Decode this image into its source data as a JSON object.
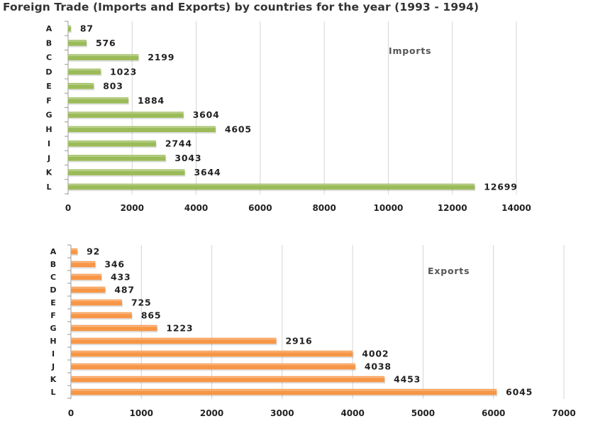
{
  "title": "Foreign Trade (Imports and Exports) by countries for the year (1993 - 1994)",
  "chart_data": [
    {
      "type": "bar",
      "orientation": "horizontal",
      "categories": [
        "A",
        "B",
        "C",
        "D",
        "E",
        "F",
        "G",
        "H",
        "I",
        "J",
        "K",
        "L"
      ],
      "series": [
        {
          "name": "Imports",
          "color": "#9bbb59",
          "values": [
            87,
            576,
            2199,
            1023,
            803,
            1884,
            3604,
            4605,
            2744,
            3043,
            3644,
            12699
          ]
        }
      ],
      "xlim": [
        0,
        14000
      ],
      "xticks": [
        0,
        2000,
        4000,
        6000,
        8000,
        10000,
        12000,
        14000
      ],
      "grid": true,
      "data_labels": true
    },
    {
      "type": "bar",
      "orientation": "horizontal",
      "categories": [
        "A",
        "B",
        "C",
        "D",
        "E",
        "F",
        "G",
        "H",
        "I",
        "J",
        "K",
        "L"
      ],
      "series": [
        {
          "name": "Exports",
          "color": "#f79646",
          "values": [
            92,
            346,
            433,
            487,
            725,
            865,
            1223,
            2916,
            4002,
            4038,
            4453,
            6045
          ]
        }
      ],
      "xlim": [
        0,
        7000
      ],
      "xticks": [
        0,
        1000,
        2000,
        3000,
        4000,
        5000,
        6000,
        7000
      ],
      "grid": true,
      "data_labels": true
    }
  ]
}
